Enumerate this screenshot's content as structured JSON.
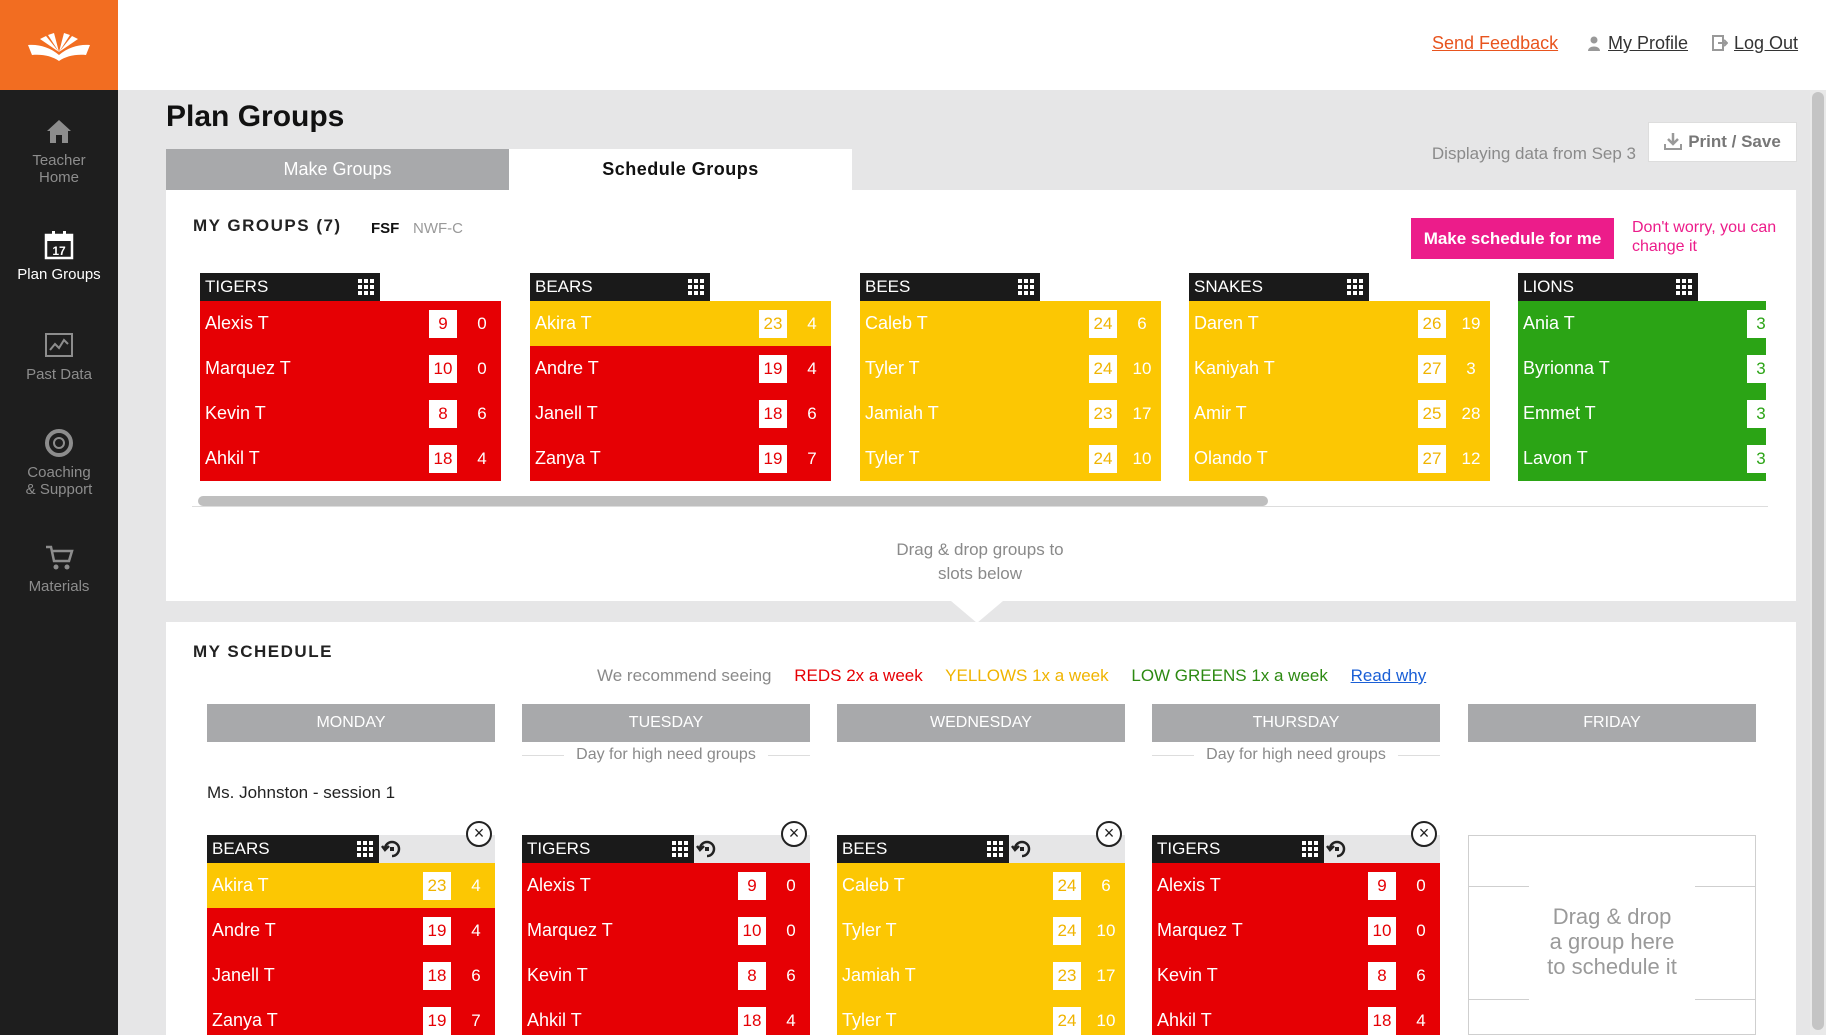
{
  "sidebar": {
    "logo_icon": "open-book-logo",
    "items": [
      {
        "label": "Teacher\nHome",
        "icon": "home-icon",
        "active": false
      },
      {
        "label": "Plan Groups",
        "icon": "calendar-icon",
        "calendar_day": "17",
        "active": true
      },
      {
        "label": "Past Data",
        "icon": "chart-icon",
        "active": false
      },
      {
        "label": "Coaching\n& Support",
        "icon": "lifebuoy-icon",
        "active": false
      },
      {
        "label": "Materials",
        "icon": "cart-icon",
        "active": false
      }
    ]
  },
  "header": {
    "send_feedback": "Send Feedback",
    "my_profile": "My Profile",
    "log_out": "Log Out"
  },
  "page": {
    "title": "Plan Groups",
    "tabs": [
      {
        "label": "Make Groups",
        "active": false
      },
      {
        "label": "Schedule Groups",
        "active": true
      }
    ],
    "data_note": "Displaying data from Sep 3",
    "print_label": "Print / Save"
  },
  "my_groups": {
    "title": "MY GROUPS (7)",
    "filters": [
      {
        "label": "FSF",
        "active": true
      },
      {
        "label": "NWF-C",
        "active": false
      }
    ],
    "make_schedule": "Make schedule for me",
    "make_note": "Don't worry, you can change it",
    "groups": [
      {
        "name": "TIGERS",
        "rows": [
          {
            "name": "Alexis T",
            "score": "9",
            "extra": "0",
            "level": "red"
          },
          {
            "name": "Marquez T",
            "score": "10",
            "extra": "0",
            "level": "red"
          },
          {
            "name": "Kevin T",
            "score": "8",
            "extra": "6",
            "level": "red"
          },
          {
            "name": "Ahkil T",
            "score": "18",
            "extra": "4",
            "level": "red"
          }
        ]
      },
      {
        "name": "BEARS",
        "rows": [
          {
            "name": "Akira T",
            "score": "23",
            "extra": "4",
            "level": "yellow"
          },
          {
            "name": "Andre T",
            "score": "19",
            "extra": "4",
            "level": "red"
          },
          {
            "name": "Janell T",
            "score": "18",
            "extra": "6",
            "level": "red"
          },
          {
            "name": "Zanya T",
            "score": "19",
            "extra": "7",
            "level": "red"
          }
        ]
      },
      {
        "name": "BEES",
        "rows": [
          {
            "name": "Caleb T",
            "score": "24",
            "extra": "6",
            "level": "yellow"
          },
          {
            "name": "Tyler T",
            "score": "24",
            "extra": "10",
            "level": "yellow"
          },
          {
            "name": "Jamiah T",
            "score": "23",
            "extra": "17",
            "level": "yellow"
          },
          {
            "name": "Tyler T",
            "score": "24",
            "extra": "10",
            "level": "yellow"
          }
        ]
      },
      {
        "name": "SNAKES",
        "rows": [
          {
            "name": "Daren T",
            "score": "26",
            "extra": "19",
            "level": "yellow"
          },
          {
            "name": "Kaniyah T",
            "score": "27",
            "extra": "3",
            "level": "yellow"
          },
          {
            "name": "Amir T",
            "score": "25",
            "extra": "28",
            "level": "yellow"
          },
          {
            "name": "Olando T",
            "score": "27",
            "extra": "12",
            "level": "yellow"
          }
        ]
      },
      {
        "name": "LIONS",
        "rows": [
          {
            "name": "Ania T",
            "score": "3",
            "extra": "",
            "level": "green"
          },
          {
            "name": "Byrionna T",
            "score": "3",
            "extra": "",
            "level": "green"
          },
          {
            "name": "Emmet T",
            "score": "3",
            "extra": "",
            "level": "green"
          },
          {
            "name": "Lavon T",
            "score": "3",
            "extra": "",
            "level": "green"
          }
        ]
      }
    ],
    "hint": "Drag & drop groups to slots below"
  },
  "my_schedule": {
    "title": "MY SCHEDULE",
    "recommend": {
      "lead": "We recommend seeing",
      "reds": "REDS 2x a week",
      "yellows": "YELLOWS 1x a week",
      "greens": "LOW GREENS 1x a week",
      "link": "Read why"
    },
    "days": [
      {
        "label": "MONDAY",
        "note": ""
      },
      {
        "label": "TUESDAY",
        "note": "Day for high need groups"
      },
      {
        "label": "WEDNESDAY",
        "note": ""
      },
      {
        "label": "THURSDAY",
        "note": "Day for high need groups"
      },
      {
        "label": "FRIDAY",
        "note": ""
      }
    ],
    "session_label": "Ms. Johnston - session 1",
    "slots": [
      {
        "name": "BEARS",
        "rows": [
          {
            "name": "Akira T",
            "score": "23",
            "extra": "4",
            "level": "yellow"
          },
          {
            "name": "Andre T",
            "score": "19",
            "extra": "4",
            "level": "red"
          },
          {
            "name": "Janell T",
            "score": "18",
            "extra": "6",
            "level": "red"
          },
          {
            "name": "Zanya T",
            "score": "19",
            "extra": "7",
            "level": "red"
          }
        ]
      },
      {
        "name": "TIGERS",
        "rows": [
          {
            "name": "Alexis T",
            "score": "9",
            "extra": "0",
            "level": "red"
          },
          {
            "name": "Marquez T",
            "score": "10",
            "extra": "0",
            "level": "red"
          },
          {
            "name": "Kevin T",
            "score": "8",
            "extra": "6",
            "level": "red"
          },
          {
            "name": "Ahkil T",
            "score": "18",
            "extra": "4",
            "level": "red"
          }
        ]
      },
      {
        "name": "BEES",
        "rows": [
          {
            "name": "Caleb T",
            "score": "24",
            "extra": "6",
            "level": "yellow"
          },
          {
            "name": "Tyler T",
            "score": "24",
            "extra": "10",
            "level": "yellow"
          },
          {
            "name": "Jamiah T",
            "score": "23",
            "extra": "17",
            "level": "yellow"
          },
          {
            "name": "Tyler T",
            "score": "24",
            "extra": "10",
            "level": "yellow"
          }
        ]
      },
      {
        "name": "TIGERS",
        "rows": [
          {
            "name": "Alexis T",
            "score": "9",
            "extra": "0",
            "level": "red"
          },
          {
            "name": "Marquez T",
            "score": "10",
            "extra": "0",
            "level": "red"
          },
          {
            "name": "Kevin T",
            "score": "8",
            "extra": "6",
            "level": "red"
          },
          {
            "name": "Ahkil T",
            "score": "18",
            "extra": "4",
            "level": "red"
          }
        ]
      }
    ],
    "empty_slot": "Drag & drop\na group here\nto schedule it"
  },
  "colors": {
    "brand_orange": "#f26d21",
    "sidebar": "#1e1e1e",
    "red": "#e60004",
    "yellow": "#fcc703",
    "green": "#2ba415",
    "pink": "#ec1c8a",
    "link_blue": "#1a5fd6"
  }
}
